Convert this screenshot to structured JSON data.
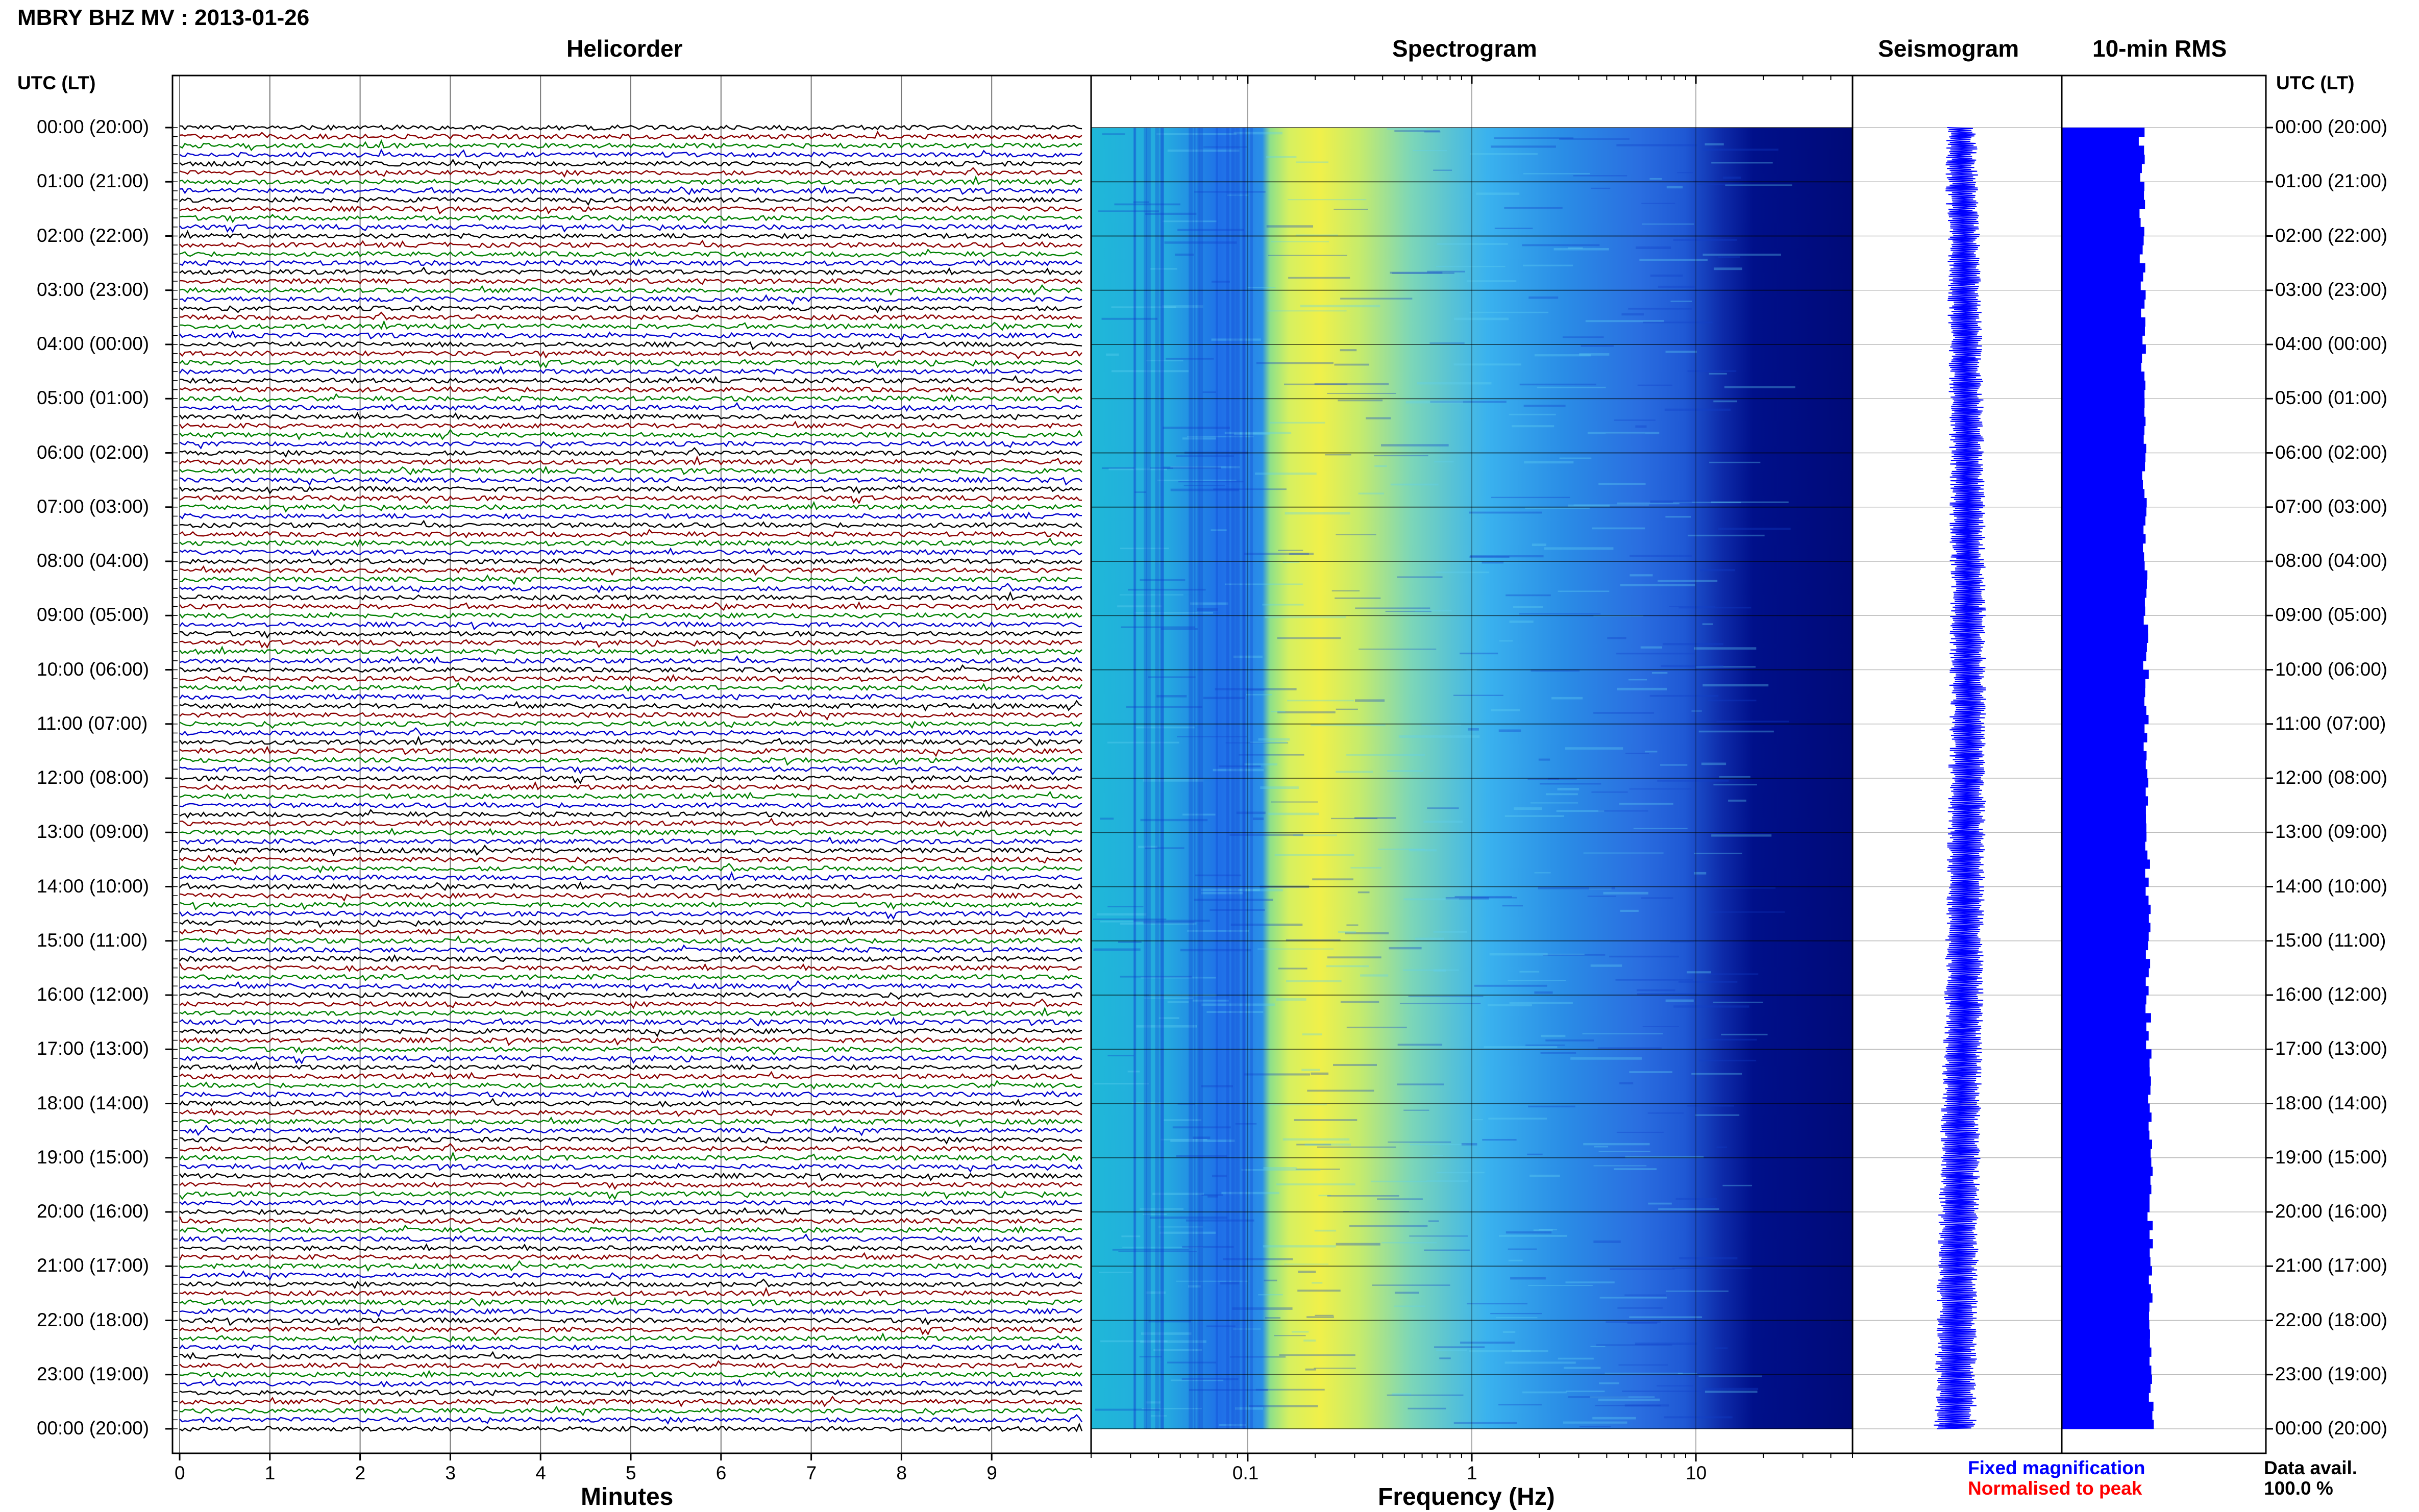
{
  "header": {
    "station_title": "MBRY BHZ MV : 2013-01-26",
    "tz_label_left": "UTC (LT)",
    "tz_label_right": "UTC (LT)"
  },
  "panels": {
    "helicorder": "Helicorder",
    "spectrogram": "Spectrogram",
    "seismogram": "Seismogram",
    "rms": "10-min RMS"
  },
  "axes": {
    "helicorder_xlabel": "Minutes",
    "spectrogram_xlabel": "Frequency (Hz)"
  },
  "legend": {
    "fixed": "Fixed magnification",
    "normalised": "Normalised to peak",
    "fixed_color": "#0000ff",
    "normalised_color": "#ff0000"
  },
  "data_avail": {
    "label": "Data avail.",
    "value": "100.0 %"
  },
  "colors": {
    "trace_cycle": [
      "#000000",
      "#8b0000",
      "#008000",
      "#0000cd"
    ],
    "spectrogram_low": "#00008b",
    "spectrogram_high": "#ffff00",
    "rms_fill": "#0000ff"
  },
  "chart_data": [
    {
      "type": "line",
      "title": "Helicorder",
      "xlabel": "Minutes",
      "x_ticks": [
        "0",
        "1",
        "2",
        "3",
        "4",
        "5",
        "6",
        "7",
        "8",
        "9"
      ],
      "xlim": [
        0,
        10
      ],
      "y_labels": [
        "00:00 (20:00)",
        "01:00 (21:00)",
        "02:00 (22:00)",
        "03:00 (23:00)",
        "04:00 (00:00)",
        "05:00 (01:00)",
        "06:00 (02:00)",
        "07:00 (03:00)",
        "08:00 (04:00)",
        "09:00 (05:00)",
        "10:00 (06:00)",
        "11:00 (07:00)",
        "12:00 (08:00)",
        "13:00 (09:00)",
        "14:00 (10:00)",
        "15:00 (11:00)",
        "16:00 (12:00)",
        "17:00 (13:00)",
        "18:00 (14:00)",
        "19:00 (15:00)",
        "20:00 (16:00)",
        "21:00 (17:00)",
        "22:00 (18:00)",
        "23:00 (19:00)",
        "00:00 (20:00)"
      ],
      "traces_per_hour": 6,
      "hours": 24
    },
    {
      "type": "heatmap",
      "title": "Spectrogram",
      "xlabel": "Frequency (Hz)",
      "x_scale": "log",
      "x_ticks": [
        "0.1",
        "1",
        "10"
      ],
      "xlim": [
        0.02,
        50
      ],
      "peak_band_hz": [
        0.15,
        0.3
      ],
      "rolloff_hz": 10
    },
    {
      "type": "line",
      "title": "Seismogram",
      "samples": 144
    },
    {
      "type": "bar",
      "title": "10-min RMS",
      "orientation": "horizontal",
      "bins": 144,
      "relative_level_range": [
        0.72,
        0.9
      ]
    }
  ]
}
